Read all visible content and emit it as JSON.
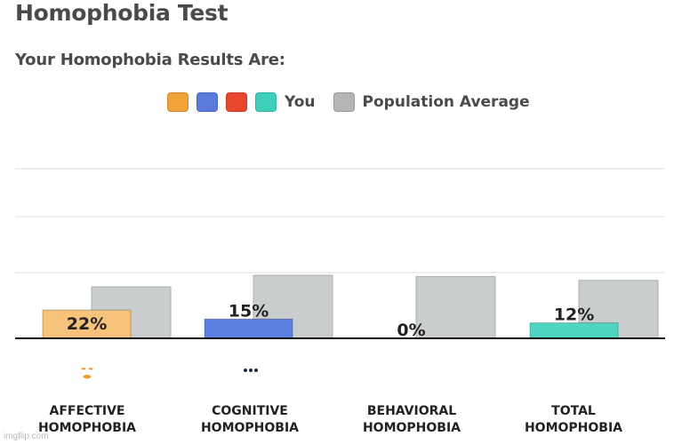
{
  "page": {
    "title": "Homophobia Test",
    "subtitle": "Your Homophobia Results Are:",
    "watermark": "imgflip.com"
  },
  "legend": {
    "you_label": "You",
    "population_label": "Population Average",
    "you_colors": [
      "#f0a43a",
      "#5b79db",
      "#e8472e",
      "#3fd0bd"
    ],
    "population_color": "#b5b5b5"
  },
  "chart_data": {
    "type": "bar",
    "categories": [
      "AFFECTIVE HOMOPHOBIA",
      "COGNITIVE HOMOPHOBIA",
      "BEHAVIORAL HOMOPHOBIA",
      "TOTAL HOMOPHOBIA"
    ],
    "series": [
      {
        "name": "You",
        "values": [
          22,
          15,
          0,
          12
        ],
        "labels": [
          "22%",
          "15%",
          "0%",
          "12%"
        ],
        "colors": [
          "#f7c27a",
          "#5a7fe0",
          "#e8472e",
          "#4fd6c3"
        ]
      },
      {
        "name": "Population Average",
        "values": [
          40,
          49,
          48,
          45
        ],
        "color": "#c9cdce"
      }
    ],
    "ylim": [
      0,
      140
    ],
    "grid": true,
    "legend_position": "top"
  },
  "categories": [
    {
      "line1": "AFFECTIVE",
      "line2": "HOMOPHOBIA",
      "icon": "theater-mask-icon",
      "icon_color": "#f09a2c"
    },
    {
      "line1": "COGNITIVE",
      "line2": "HOMOPHOBIA",
      "icon": "thought-bubble-icon",
      "icon_color": "#1f2a4a"
    },
    {
      "line1": "BEHAVIORAL",
      "line2": "HOMOPHOBIA",
      "icon": "running-person-icon",
      "icon_color": "#e8472e"
    },
    {
      "line1": "TOTAL",
      "line2": "HOMOPHOBIA",
      "icon": "constellation-icon",
      "icon_color": "#3fc6b2"
    }
  ]
}
